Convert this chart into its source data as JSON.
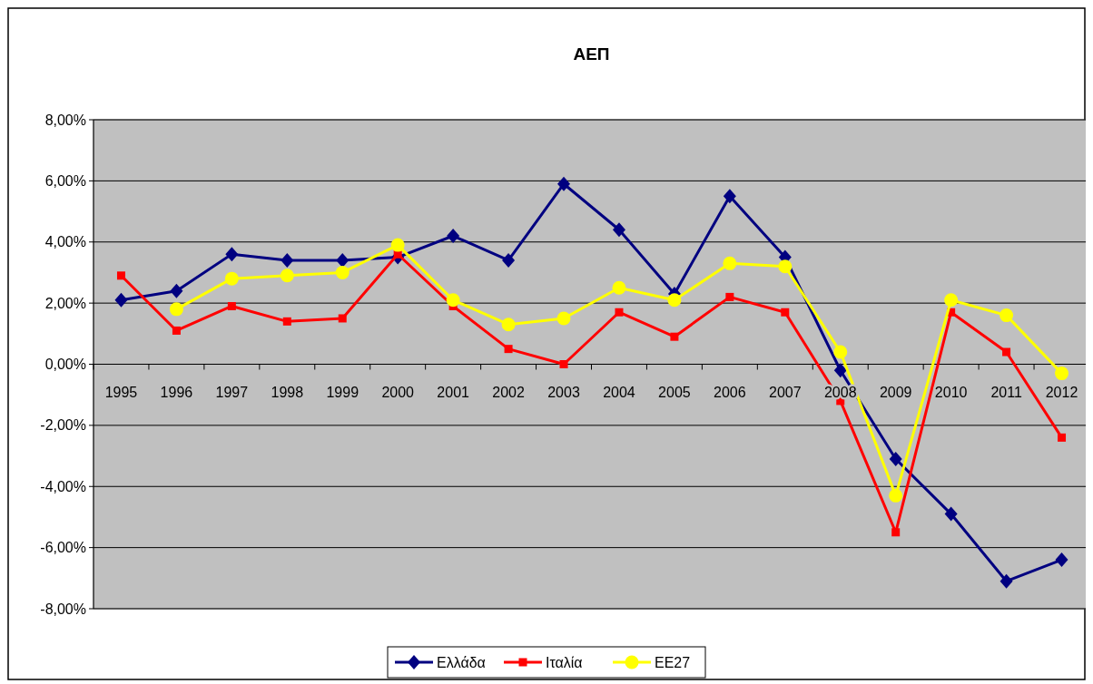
{
  "chart_data": {
    "type": "line",
    "title": "ΑΕΠ",
    "categories": [
      "1995",
      "1996",
      "1997",
      "1998",
      "1999",
      "2000",
      "2001",
      "2002",
      "2003",
      "2004",
      "2005",
      "2006",
      "2007",
      "2008",
      "2009",
      "2010",
      "2011",
      "2012"
    ],
    "series": [
      {
        "name": "Ελλάδα",
        "color": "#000080",
        "marker": "diamond",
        "values": [
          2.1,
          2.4,
          3.6,
          3.4,
          3.4,
          3.5,
          4.2,
          3.4,
          5.9,
          4.4,
          2.3,
          5.5,
          3.5,
          -0.2,
          -3.1,
          -4.9,
          -7.1,
          -6.4
        ]
      },
      {
        "name": "Ιταλία",
        "color": "#ff0000",
        "marker": "square",
        "values": [
          2.9,
          1.1,
          1.9,
          1.4,
          1.5,
          3.6,
          1.9,
          0.5,
          0.0,
          1.7,
          0.9,
          2.2,
          1.7,
          -1.2,
          -5.5,
          1.7,
          0.4,
          -2.4
        ]
      },
      {
        "name": "ΕΕ27",
        "color": "#ffff00",
        "marker": "circle",
        "values": [
          null,
          1.8,
          2.8,
          2.9,
          3.0,
          3.9,
          2.1,
          1.3,
          1.5,
          2.5,
          2.1,
          3.3,
          3.2,
          0.4,
          -4.3,
          2.1,
          1.6,
          -0.3
        ]
      }
    ],
    "ylim": [
      -8,
      8
    ],
    "yticks": [
      {
        "value": -8,
        "label": "-8,00%"
      },
      {
        "value": -6,
        "label": "-6,00%"
      },
      {
        "value": -4,
        "label": "-4,00%"
      },
      {
        "value": -2,
        "label": "-2,00%"
      },
      {
        "value": 0,
        "label": "0,00%"
      },
      {
        "value": 2,
        "label": "2,00%"
      },
      {
        "value": 4,
        "label": "4,00%"
      },
      {
        "value": 6,
        "label": "6,00%"
      },
      {
        "value": 8,
        "label": "8,00%"
      }
    ],
    "grid": "y",
    "legend": "bottom"
  }
}
